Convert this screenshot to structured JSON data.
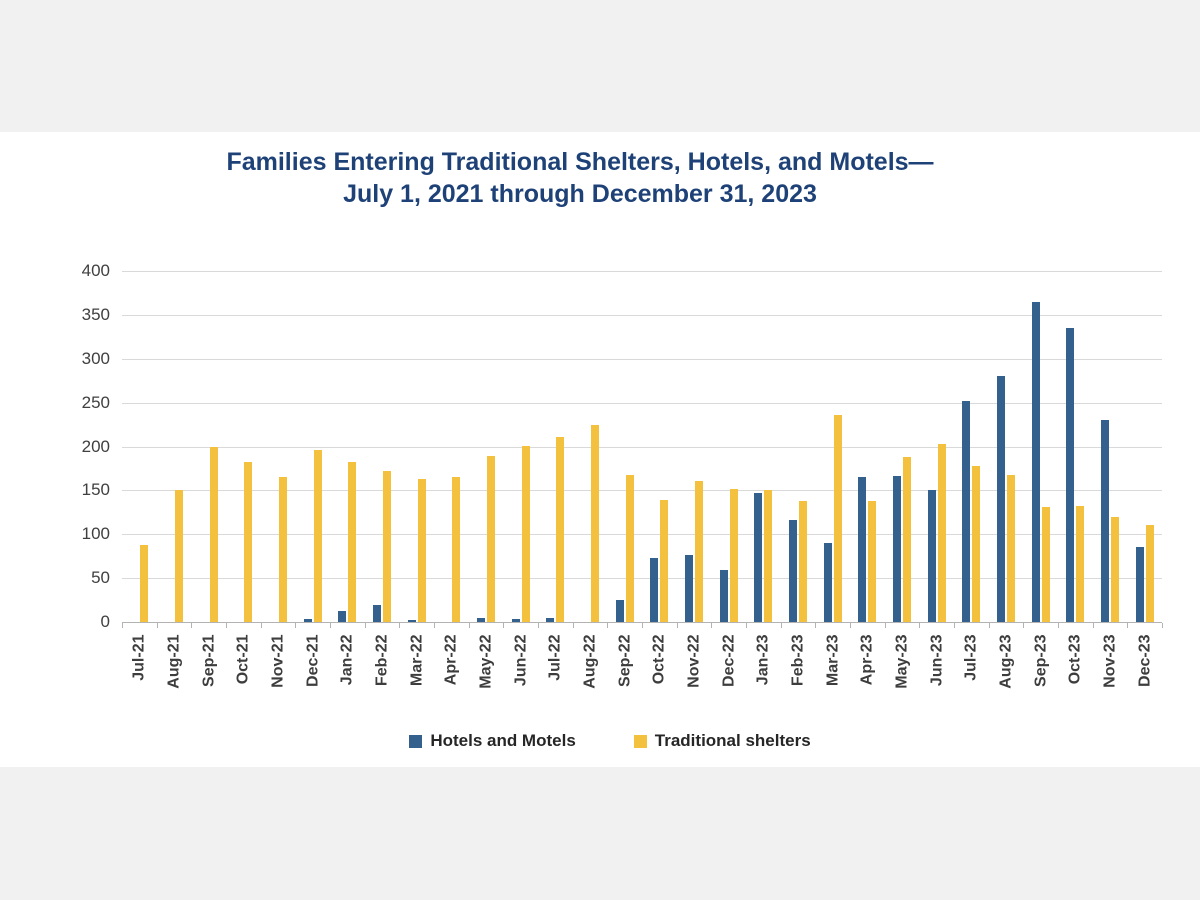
{
  "title": {
    "line1": "Families Entering Traditional Shelters, Hotels, and Motels—",
    "line2": "July 1, 2021 through December 31, 2023",
    "color": "#1e4277"
  },
  "colors": {
    "hotels_and_motels_bar": "#33608D",
    "traditional_shelters_bar": "#F3C13D",
    "gridline": "#d9d9d9",
    "axis_line": "#b3b3b3",
    "background_band": "#f1f1f2",
    "plot_background": "#ffffff",
    "axis_label_text": "#3d3d3d"
  },
  "chart_data": {
    "type": "bar",
    "title": "Families Entering Traditional Shelters, Hotels, and Motels— July 1, 2021 through December 31, 2023",
    "categories": [
      "Jul-21",
      "Aug-21",
      "Sep-21",
      "Oct-21",
      "Nov-21",
      "Dec-21",
      "Jan-22",
      "Feb-22",
      "Mar-22",
      "Apr-22",
      "May-22",
      "Jun-22",
      "Jul-22",
      "Aug-22",
      "Sep-22",
      "Oct-22",
      "Nov-22",
      "Dec-22",
      "Jan-23",
      "Feb-23",
      "Mar-23",
      "Apr-23",
      "May-23",
      "Jun-23",
      "Jul-23",
      "Aug-23",
      "Sep-23",
      "Oct-23",
      "Nov-23",
      "Dec-23"
    ],
    "series": [
      {
        "name": "Hotels and Motels",
        "color": "#33608D",
        "values": [
          0,
          0,
          0,
          0,
          0,
          3,
          12,
          19,
          2,
          0,
          5,
          4,
          5,
          0,
          25,
          73,
          76,
          59,
          147,
          116,
          90,
          165,
          166,
          150,
          252,
          280,
          365,
          335,
          230,
          85
        ]
      },
      {
        "name": "Traditional shelters",
        "color": "#F3C13D",
        "values": [
          88,
          150,
          200,
          182,
          165,
          196,
          182,
          172,
          163,
          165,
          189,
          201,
          211,
          225,
          167,
          139,
          161,
          152,
          150,
          138,
          236,
          138,
          188,
          203,
          178,
          168,
          131,
          132,
          120,
          110
        ]
      }
    ],
    "xlabel": "",
    "ylabel": "",
    "ylim": [
      0,
      400
    ],
    "ytick_step": 50,
    "yticks": [
      0,
      50,
      100,
      150,
      200,
      250,
      300,
      350,
      400
    ],
    "grid": true,
    "legend_position": "bottom"
  }
}
